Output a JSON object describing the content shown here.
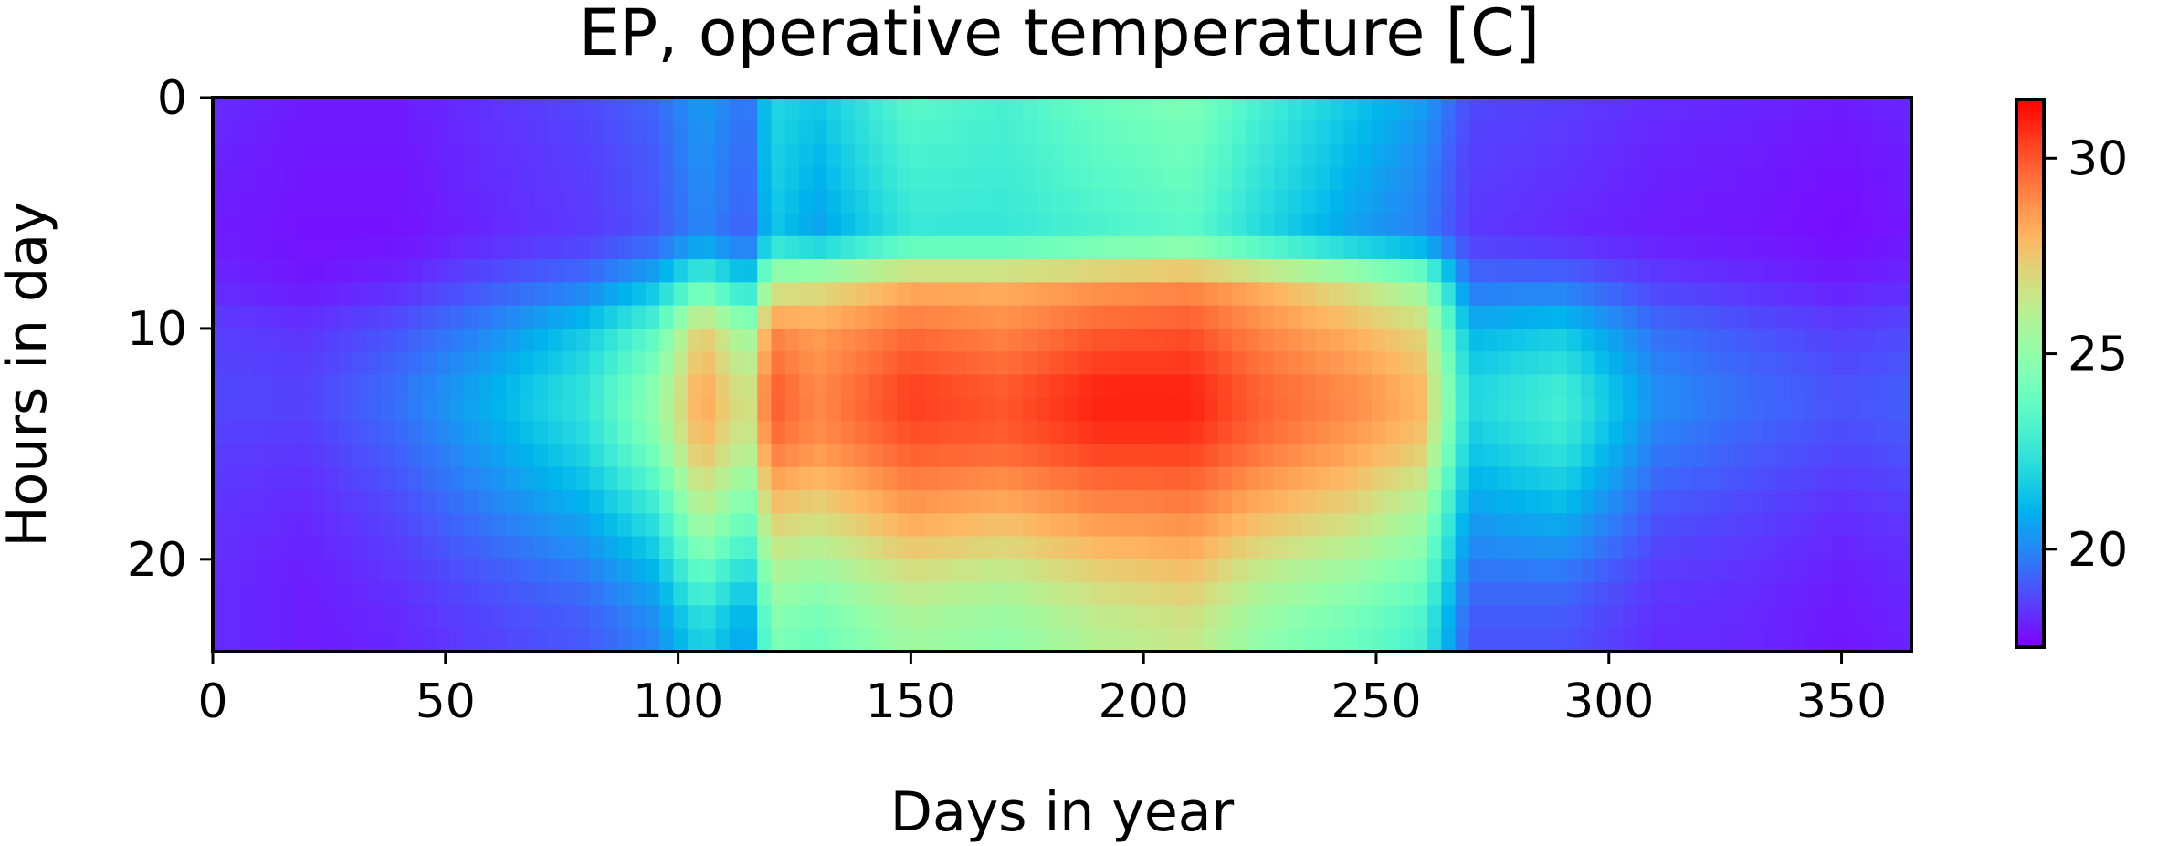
{
  "chart_data": {
    "type": "heatmap",
    "title": "EP, operative temperature [C]",
    "xlabel": "Days in year",
    "ylabel": "Hours in day",
    "x_range": [
      0,
      365
    ],
    "y_range": [
      0,
      24
    ],
    "y_inverted": true,
    "x_ticks": [
      0,
      50,
      100,
      150,
      200,
      250,
      300,
      350
    ],
    "y_ticks": [
      0,
      10,
      20
    ],
    "colormap": "rainbow",
    "color_range": [
      17.5,
      31.5
    ],
    "colorbar_ticks": [
      20,
      25,
      30
    ],
    "day_samples": [
      0,
      20,
      40,
      60,
      80,
      95,
      105,
      115,
      120,
      130,
      150,
      170,
      190,
      210,
      225,
      245,
      260,
      270,
      290,
      310,
      330,
      350,
      364
    ],
    "hour_samples": [
      0,
      3,
      6,
      8,
      10,
      13,
      15,
      18,
      21,
      23
    ],
    "values": [
      [
        18.3,
        18.1,
        18.0,
        18.2,
        18.6,
        18.8,
        18.6,
        18.4,
        18.3,
        18.3
      ],
      [
        18.0,
        17.9,
        17.8,
        17.9,
        18.4,
        18.7,
        18.5,
        18.2,
        18.0,
        18.0
      ],
      [
        18.0,
        17.9,
        17.8,
        18.2,
        19.0,
        19.6,
        19.3,
        18.8,
        18.4,
        18.2
      ],
      [
        18.4,
        18.3,
        18.2,
        19.0,
        20.0,
        21.0,
        20.6,
        19.8,
        19.0,
        18.7
      ],
      [
        18.8,
        18.6,
        18.5,
        19.6,
        21.5,
        22.5,
        22.0,
        20.8,
        19.6,
        19.1
      ],
      [
        19.3,
        19.1,
        19.0,
        21.0,
        23.5,
        25.0,
        24.5,
        22.5,
        20.8,
        20.0
      ],
      [
        20.5,
        20.2,
        20.0,
        23.5,
        27.5,
        28.5,
        28.0,
        26.0,
        23.5,
        22.0
      ],
      [
        19.5,
        19.3,
        19.1,
        21.5,
        25.0,
        26.5,
        26.0,
        24.0,
        21.5,
        20.5
      ],
      [
        22.0,
        21.8,
        21.5,
        26.0,
        29.0,
        30.0,
        29.5,
        27.5,
        25.5,
        24.5
      ],
      [
        21.5,
        21.0,
        20.5,
        26.5,
        28.5,
        29.0,
        28.8,
        27.0,
        25.0,
        24.0
      ],
      [
        23.5,
        23.0,
        22.5,
        28.0,
        29.5,
        30.5,
        30.0,
        28.5,
        26.5,
        25.5
      ],
      [
        23.0,
        22.8,
        22.5,
        28.0,
        29.0,
        30.0,
        29.8,
        28.0,
        26.0,
        25.0
      ],
      [
        24.0,
        23.5,
        23.0,
        28.5,
        29.8,
        31.0,
        30.5,
        28.8,
        27.0,
        26.0
      ],
      [
        24.5,
        24.0,
        23.5,
        28.8,
        30.0,
        31.0,
        30.5,
        29.0,
        27.5,
        26.5
      ],
      [
        23.0,
        22.5,
        22.0,
        28.0,
        29.0,
        29.8,
        29.5,
        28.0,
        26.0,
        25.0
      ],
      [
        21.5,
        21.0,
        20.5,
        26.5,
        28.0,
        29.0,
        28.5,
        27.0,
        25.0,
        24.0
      ],
      [
        20.5,
        20.0,
        19.8,
        25.0,
        27.0,
        28.0,
        27.5,
        25.5,
        24.0,
        23.0
      ],
      [
        18.8,
        18.6,
        18.5,
        19.5,
        21.0,
        22.0,
        21.5,
        20.5,
        19.5,
        19.0
      ],
      [
        18.6,
        18.4,
        18.2,
        19.5,
        21.5,
        23.0,
        22.5,
        21.0,
        19.5,
        19.0
      ],
      [
        18.3,
        18.1,
        18.0,
        18.6,
        19.5,
        20.2,
        19.8,
        19.0,
        18.5,
        18.3
      ],
      [
        18.2,
        18.0,
        17.9,
        18.3,
        19.0,
        19.5,
        19.2,
        18.7,
        18.3,
        18.2
      ],
      [
        18.0,
        17.8,
        17.7,
        18.0,
        18.6,
        19.0,
        18.8,
        18.3,
        18.0,
        17.9
      ],
      [
        18.2,
        18.0,
        17.9,
        18.2,
        18.8,
        19.2,
        19.0,
        18.5,
        18.2,
        18.1
      ]
    ]
  }
}
